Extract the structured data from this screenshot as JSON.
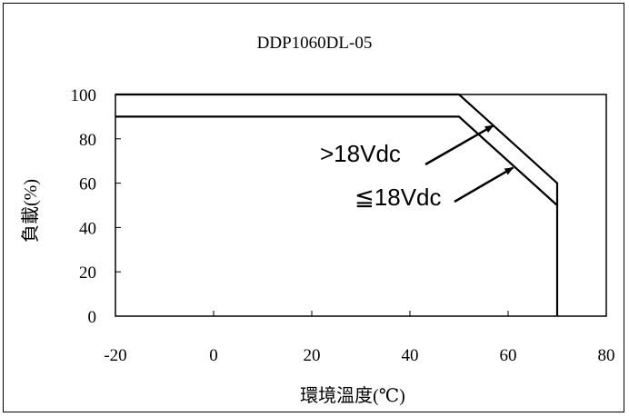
{
  "chart_data": {
    "type": "line",
    "title": "DDP1060DL-05",
    "xlabel": "環境溫度(℃)",
    "ylabel": "負載(%)",
    "xlim": [
      -20,
      80
    ],
    "ylim": [
      0,
      100
    ],
    "x_ticks": [
      "-20",
      "0",
      "20",
      "40",
      "60",
      "80"
    ],
    "y_ticks": [
      "0",
      "20",
      "40",
      "60",
      "80",
      "100"
    ],
    "grid": false,
    "series": [
      {
        "name": ">18Vdc",
        "x": [
          -20,
          50,
          70,
          70
        ],
        "y": [
          100,
          100,
          60,
          0
        ]
      },
      {
        "name": "≦18Vdc",
        "x": [
          -20,
          50,
          70
        ],
        "y": [
          90,
          90,
          50
        ]
      }
    ],
    "annotations": [
      {
        "text": ">18Vdc",
        "points_to": [
          57,
          86
        ]
      },
      {
        "text": "≦18Vdc",
        "points_to": [
          61,
          67
        ]
      }
    ]
  }
}
